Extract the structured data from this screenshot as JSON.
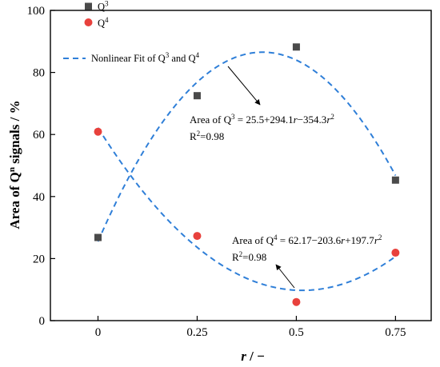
{
  "chart_data": {
    "type": "scatter",
    "xlabel_var": "r",
    "xlabel_unit": " / −",
    "ylabel_main": "Area of Q",
    "ylabel_sup": "n",
    "ylabel_rest": " signals / %",
    "x_ticks": [
      0,
      0.25,
      0.5,
      0.75
    ],
    "x_tick_labels": [
      "0",
      "0.25",
      "0.5",
      "0.75"
    ],
    "xlim": [
      -0.12,
      0.84
    ],
    "y_ticks": [
      0,
      20,
      40,
      60,
      80,
      100
    ],
    "y_tick_labels": [
      "0",
      "20",
      "40",
      "60",
      "80",
      "100"
    ],
    "ylim": [
      0,
      100
    ],
    "grid": false,
    "legend_position": "top-left",
    "series": [
      {
        "name_base": "Q",
        "name_sup": "3",
        "marker": "square",
        "color": "#4a4a4a",
        "x": [
          0,
          0.25,
          0.5,
          0.75
        ],
        "y": [
          26.8,
          72.5,
          88.2,
          45.3
        ]
      },
      {
        "name_base": "Q",
        "name_sup": "4",
        "marker": "circle",
        "color": "#e8413c",
        "x": [
          0,
          0.25,
          0.5,
          0.75
        ],
        "y": [
          60.9,
          27.3,
          6.0,
          21.9
        ]
      }
    ],
    "fits": [
      {
        "coefficients": [
          25.5,
          294.1,
          -354.3
        ],
        "color": "#2f7fd8",
        "style": "dashed"
      },
      {
        "coefficients": [
          62.17,
          -203.6,
          197.7
        ],
        "color": "#2f7fd8",
        "style": "dashed"
      }
    ],
    "fit_legend": {
      "prefix": "Nonlinear Fit of Q",
      "sup1": "3",
      "middle": " and Q",
      "sup2": "4"
    },
    "annotations": [
      {
        "eq_prefix": "Area  of Q",
        "eq_sup": "3",
        "eq_middle": " = 25.5+294.1",
        "eq_var1": "r",
        "eq_middle2": "−354.3",
        "eq_var2": "r",
        "eq_sup2": "2",
        "r2_base": "R",
        "r2_sup": "2",
        "r2_value": "=0.98"
      },
      {
        "eq_prefix": "Area of Q",
        "eq_sup": "4",
        "eq_middle": " = 62.17−203.6",
        "eq_var1": "r",
        "eq_middle2": "+197.7",
        "eq_var2": "r",
        "eq_sup2": "2",
        "r2_base": "R",
        "r2_sup": "2",
        "r2_value": "=0.98"
      }
    ]
  }
}
